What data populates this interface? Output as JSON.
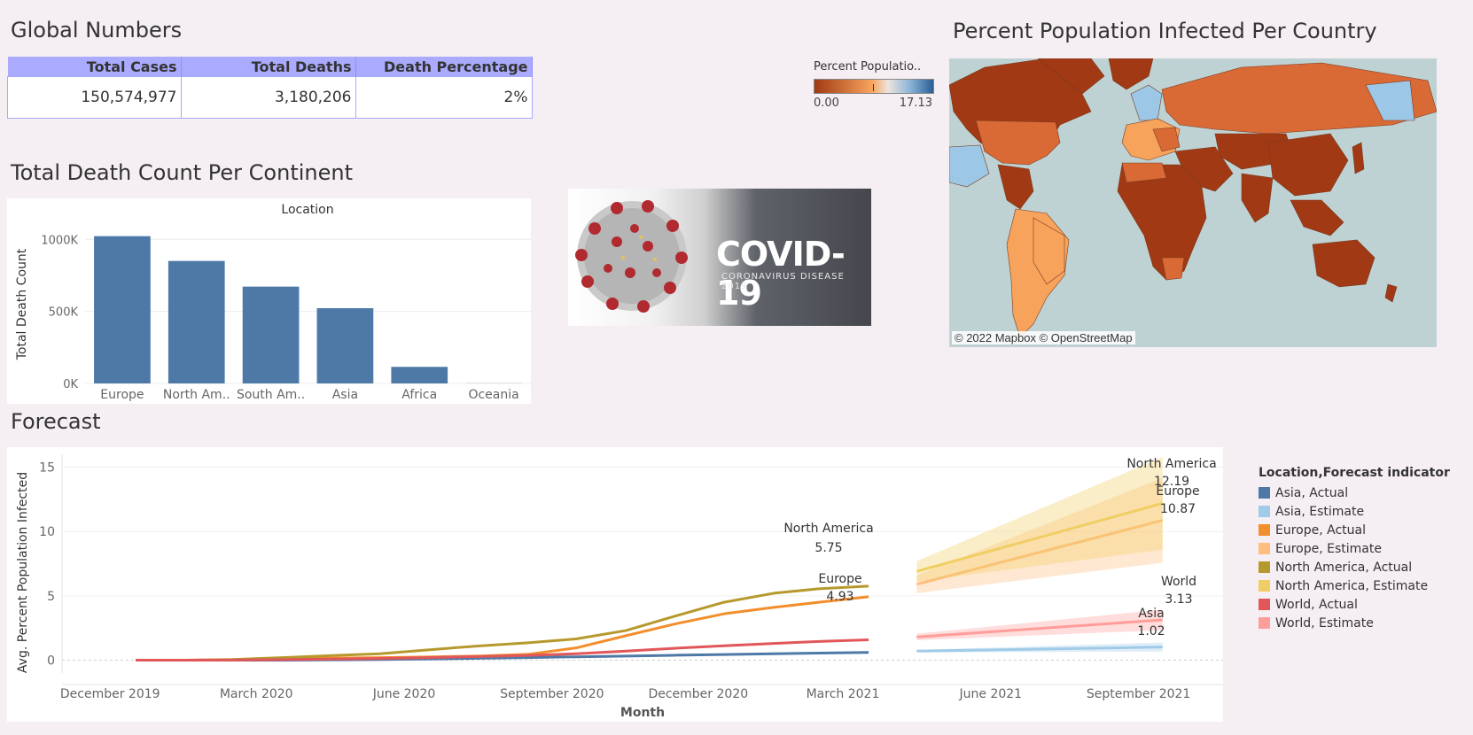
{
  "global_numbers": {
    "title": "Global Numbers",
    "headers": [
      "Total Cases",
      "Total Deaths",
      "Death Percentage"
    ],
    "values": [
      "150,574,977",
      "3,180,206",
      "2%"
    ]
  },
  "map_panel": {
    "title": "Percent Population Infected Per Country",
    "legend_title": "Percent Populatio..",
    "legend_min": "0.00",
    "legend_max": "17.13",
    "credit": "© 2022 Mapbox © OpenStreetMap",
    "colors": {
      "ocean": "#bfd2d3",
      "low": "#f7a35c",
      "mid": "#d96a36",
      "high": "#a03914",
      "blue": "#9cc7e6"
    }
  },
  "covid_banner": {
    "title": "COVID-19",
    "subtitle": "CORONAVIRUS DISEASE 2019"
  },
  "death_panel": {
    "title": "Total Death Count Per Continent"
  },
  "forecast_panel": {
    "title": "Forecast"
  },
  "chart_data": [
    {
      "type": "bar",
      "title": "Total Death Count Per Continent",
      "header": "Location",
      "categories": [
        "Europe",
        "North Am..",
        "South Am..",
        "Asia",
        "Africa",
        "Oceania"
      ],
      "values": [
        1022000,
        850000,
        672000,
        522000,
        115000,
        1000
      ],
      "ylabel": "Total Death Count",
      "yticks": [
        "0K",
        "500K",
        "1000K"
      ],
      "ylim": [
        0,
        1100000
      ],
      "color": "#4e79a7"
    },
    {
      "type": "line",
      "title": "Forecast",
      "xlabel": "Month",
      "ylabel": "Avg. Percent Population Infected",
      "x_tick_labels": [
        "December 2019",
        "March 2020",
        "June 2020",
        "September 2020",
        "December 2020",
        "March 2021",
        "June 2021",
        "September 2021"
      ],
      "ylim": [
        -1,
        16
      ],
      "yticks": [
        0,
        5,
        10,
        15
      ],
      "legend_title": "Location,Forecast indicator",
      "series": [
        {
          "name": "Asia, Actual",
          "color": "#4e79a7",
          "x": [
            "2020-01",
            "2020-02",
            "2020-03",
            "2020-04",
            "2020-05",
            "2020-06",
            "2020-07",
            "2020-08",
            "2020-09",
            "2020-10",
            "2020-11",
            "2020-12",
            "2021-01",
            "2021-02",
            "2021-03",
            "2021-04"
          ],
          "values": [
            0,
            0,
            0,
            0,
            0.02,
            0.05,
            0.09,
            0.14,
            0.2,
            0.26,
            0.32,
            0.38,
            0.44,
            0.5,
            0.55,
            0.6
          ]
        },
        {
          "name": "Asia, Estimate",
          "color": "#a0cbe8",
          "x": [
            "2021-05",
            "2021-10"
          ],
          "values": [
            0.7,
            1.02
          ]
        },
        {
          "name": "Europe, Actual",
          "color": "#f28e2b",
          "x": [
            "2020-01",
            "2020-02",
            "2020-03",
            "2020-04",
            "2020-05",
            "2020-06",
            "2020-07",
            "2020-08",
            "2020-09",
            "2020-10",
            "2020-11",
            "2020-12",
            "2021-01",
            "2021-02",
            "2021-03",
            "2021-04"
          ],
          "values": [
            0,
            0,
            0.02,
            0.08,
            0.15,
            0.2,
            0.25,
            0.32,
            0.45,
            0.95,
            1.9,
            2.8,
            3.6,
            4.1,
            4.5,
            4.93
          ]
        },
        {
          "name": "Europe, Estimate",
          "color": "#ffbe7d",
          "x": [
            "2021-05",
            "2021-10"
          ],
          "values": [
            5.9,
            10.87
          ]
        },
        {
          "name": "North America, Actual",
          "color": "#b6992d",
          "x": [
            "2020-01",
            "2020-02",
            "2020-03",
            "2020-04",
            "2020-05",
            "2020-06",
            "2020-07",
            "2020-08",
            "2020-09",
            "2020-10",
            "2020-11",
            "2020-12",
            "2021-01",
            "2021-02",
            "2021-03",
            "2021-04"
          ],
          "values": [
            0,
            0,
            0.05,
            0.2,
            0.35,
            0.5,
            0.8,
            1.1,
            1.35,
            1.65,
            2.3,
            3.4,
            4.5,
            5.2,
            5.55,
            5.75
          ]
        },
        {
          "name": "North America, Estimate",
          "color": "#f1ce63",
          "x": [
            "2021-05",
            "2021-10"
          ],
          "values": [
            6.9,
            12.19
          ]
        },
        {
          "name": "World, Actual",
          "color": "#e15759",
          "x": [
            "2020-01",
            "2020-02",
            "2020-03",
            "2020-04",
            "2020-05",
            "2020-06",
            "2020-07",
            "2020-08",
            "2020-09",
            "2020-10",
            "2020-11",
            "2020-12",
            "2021-01",
            "2021-02",
            "2021-03",
            "2021-04"
          ],
          "values": [
            0,
            0,
            0.01,
            0.04,
            0.08,
            0.13,
            0.2,
            0.28,
            0.37,
            0.5,
            0.7,
            0.92,
            1.12,
            1.3,
            1.45,
            1.58
          ]
        },
        {
          "name": "World, Estimate",
          "color": "#ff9d9a",
          "x": [
            "2021-05",
            "2021-10"
          ],
          "values": [
            1.8,
            3.13
          ]
        }
      ],
      "annotations": [
        {
          "label": "North America",
          "value": "5.75"
        },
        {
          "label": "Europe",
          "value": "4.93"
        },
        {
          "label": "North America",
          "value": "12.19"
        },
        {
          "label": "Europe",
          "value": "10.87"
        },
        {
          "label": "World",
          "value": "3.13"
        },
        {
          "label": "Asia",
          "value": "1.02"
        }
      ]
    }
  ]
}
